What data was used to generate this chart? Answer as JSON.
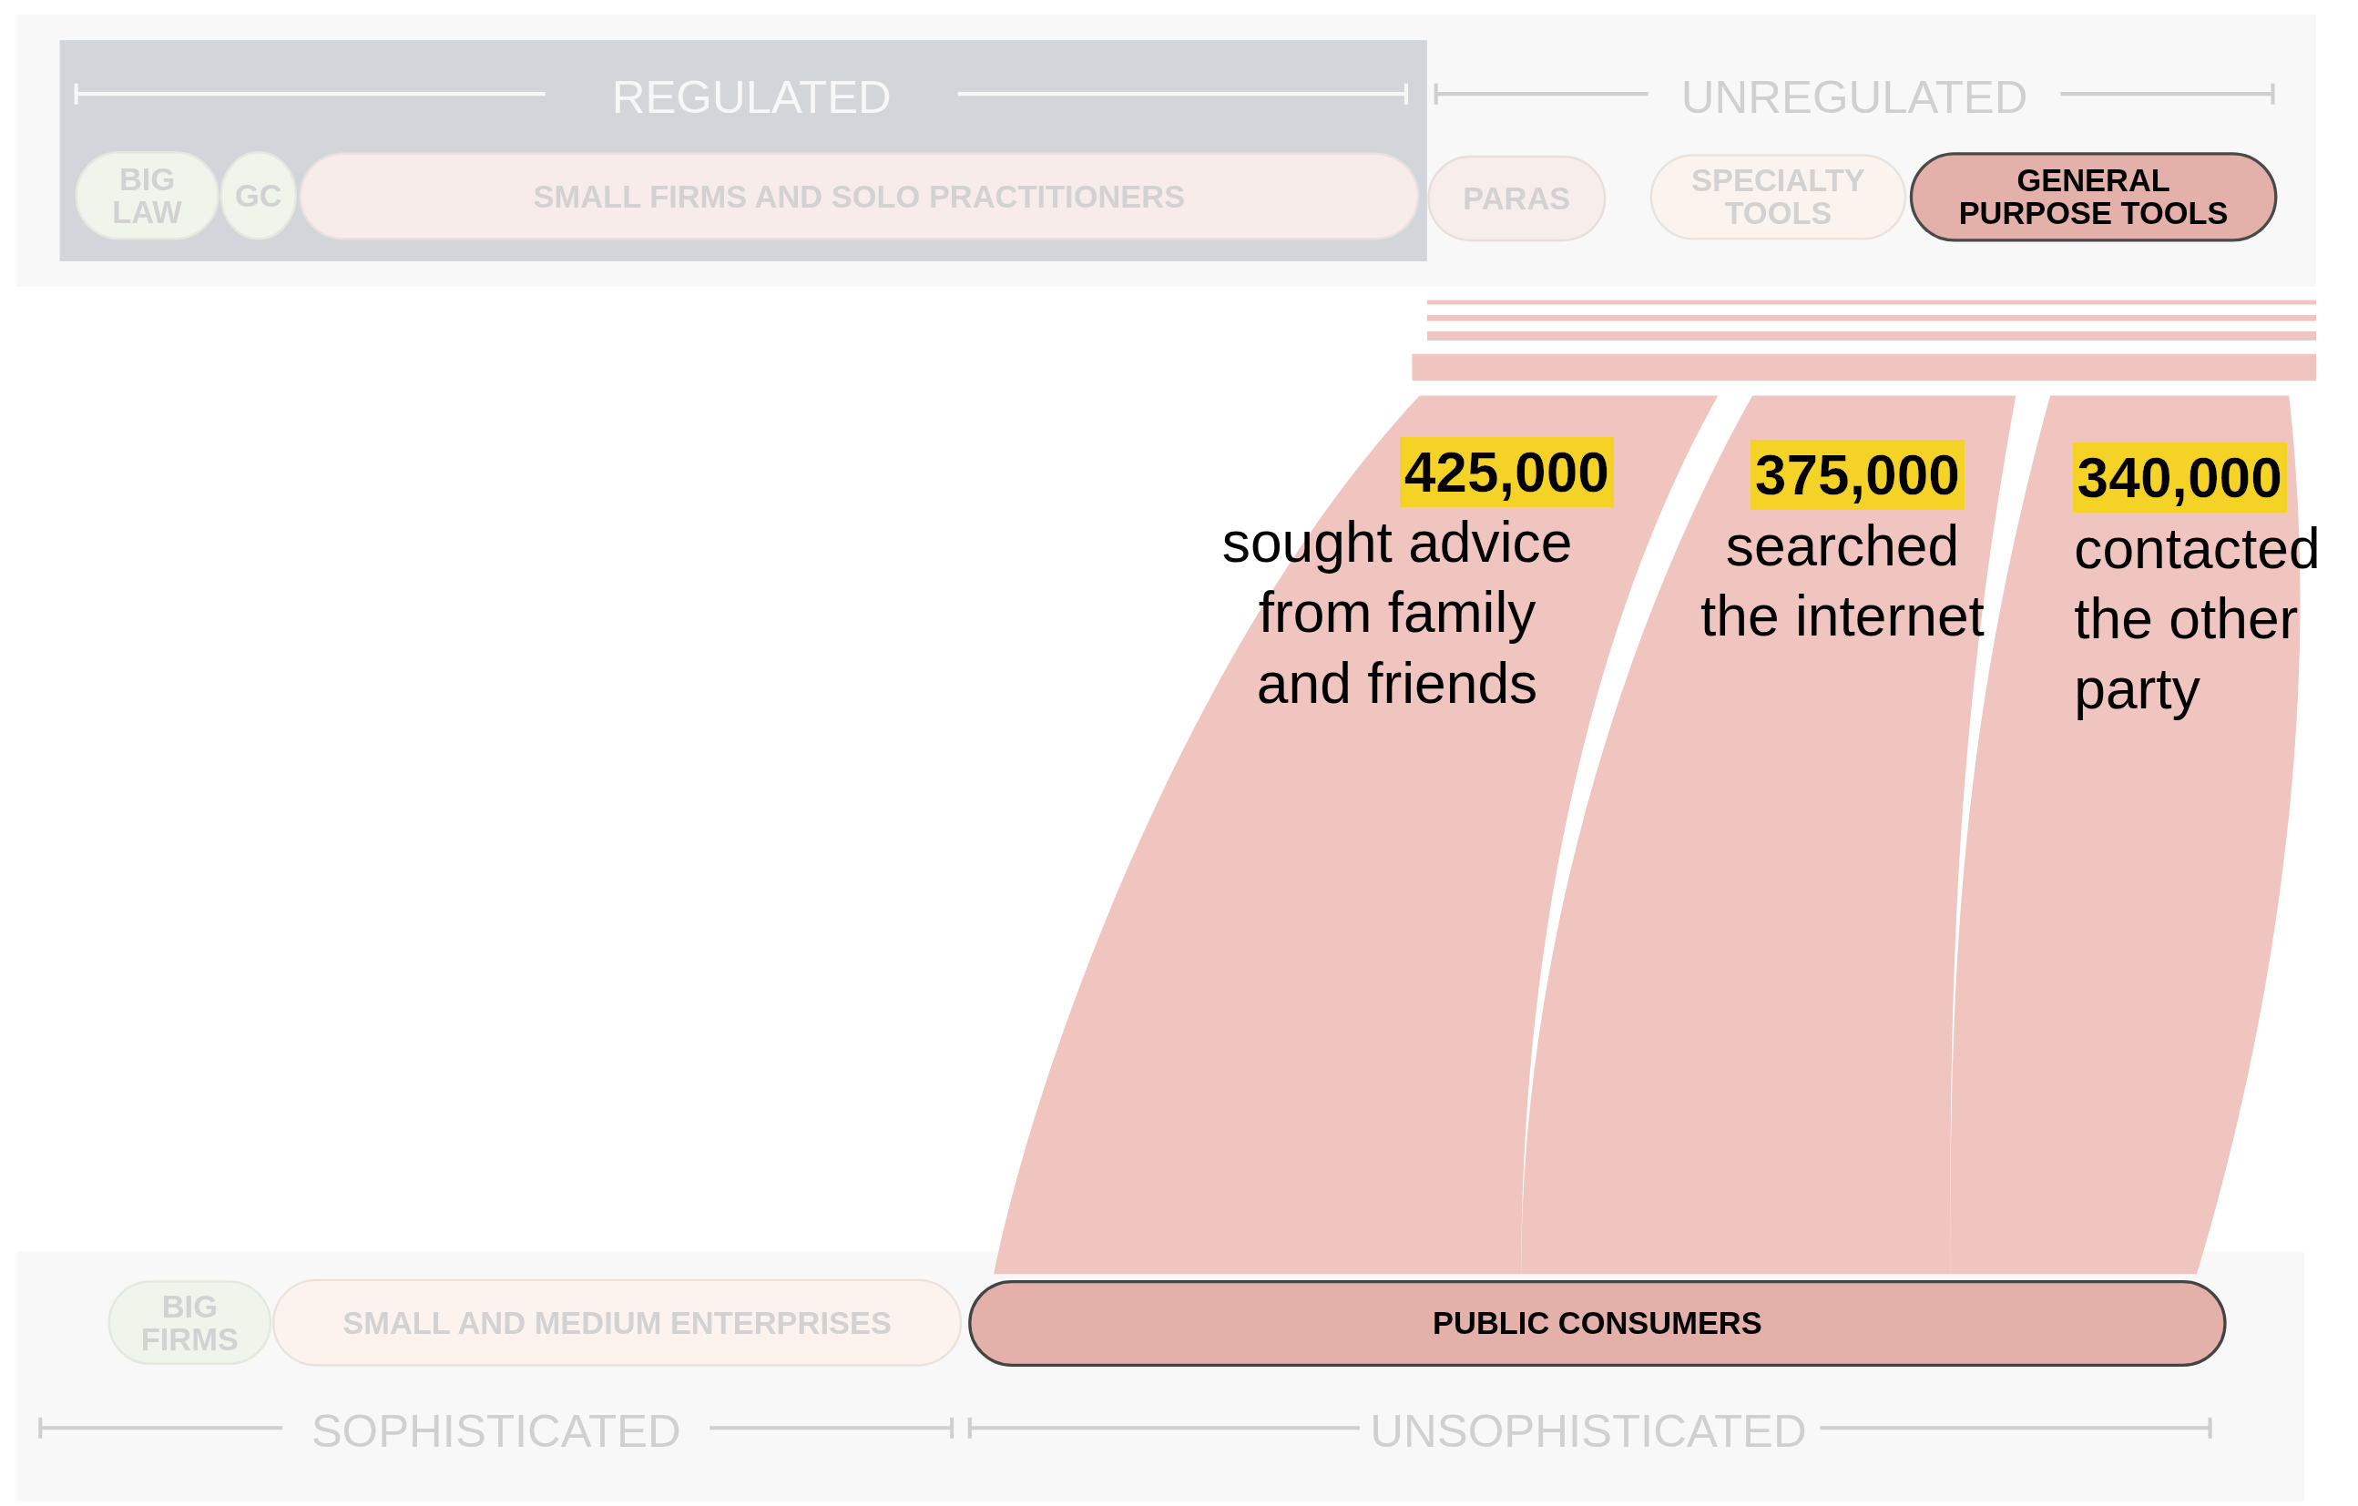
{
  "chart_data": {
    "type": "other",
    "categories": [
      "sought advice\nfrom family\nand friends",
      "searched\nthe internet",
      "contacted\nthe other\nparty"
    ],
    "values": [
      425000,
      375000,
      340000
    ],
    "value_labels": [
      "425,000",
      "375,000",
      "340,000"
    ],
    "color": "#f0c4bf",
    "annotations": [
      "REGULATED",
      "UNREGULATED",
      "BIG\nLAW",
      "GC",
      "SMALL FIRMS AND SOLO PRACTITIONERS",
      "PARAS",
      "SPECIALTY\nTOOLS",
      "GENERAL\nPURPOSE TOOLS",
      "BIG\nFIRMS",
      "SMALL AND MEDIUM ENTERPRISES",
      "PUBLIC CONSUMERS",
      "SOPHISTICATED",
      "UNSOPHISTICATED"
    ]
  }
}
